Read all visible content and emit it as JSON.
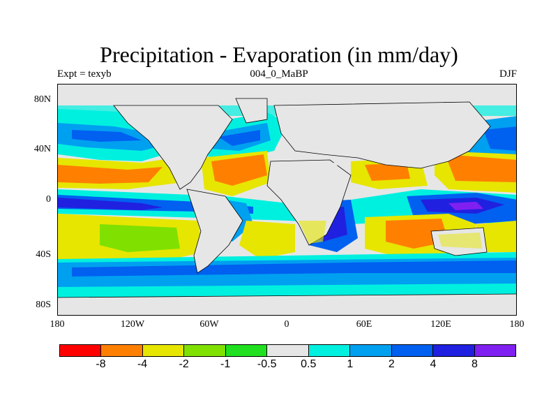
{
  "title": "Precipitation - Evaporation (in mm/day)",
  "subtitle_center": "004_0_MaBP",
  "subtitle_left": "Expt = texyb",
  "subtitle_right": "DJF",
  "lat_labels": [
    "80N",
    "40N",
    "0",
    "40S",
    "80S"
  ],
  "lon_labels": [
    "180",
    "120W",
    "60W",
    "0",
    "60E",
    "120E",
    "180"
  ],
  "colorbar": {
    "colors": [
      "#ff0000",
      "#ff8000",
      "#e6e600",
      "#80e000",
      "#20e020",
      "#e6e6e6",
      "#00f0e0",
      "#00a0f0",
      "#0060f0",
      "#2020e0",
      "#8020f0"
    ],
    "labels": [
      "-8",
      "-4",
      "-2",
      "-1",
      "-0.5",
      "0.5",
      "1",
      "2",
      "4",
      "8"
    ]
  },
  "chart_data": {
    "type": "heatmap",
    "title": "Precipitation - Evaporation (in mm/day)",
    "variable": "P-E",
    "units": "mm/day",
    "xlim": [
      -180,
      180
    ],
    "ylim": [
      -90,
      90
    ],
    "contour_levels": [
      -8,
      -4,
      -2,
      -1,
      -0.5,
      0.5,
      1,
      2,
      4,
      8
    ],
    "regions_approx": [
      {
        "region": "Equatorial Pacific ITCZ",
        "value_class": "4 to 8"
      },
      {
        "region": "Subtropical Pacific north",
        "value_class": "-4 to -2"
      },
      {
        "region": "Subtropical North Atlantic",
        "value_class": "-4 to -2"
      },
      {
        "region": "Southern Indian Ocean subtropics",
        "value_class": "-4 to -2"
      },
      {
        "region": "Southern Ocean storm track",
        "value_class": "2 to 4"
      },
      {
        "region": "Sahara / Australia interior",
        "value_class": "-0.5 to 0.5"
      }
    ]
  }
}
